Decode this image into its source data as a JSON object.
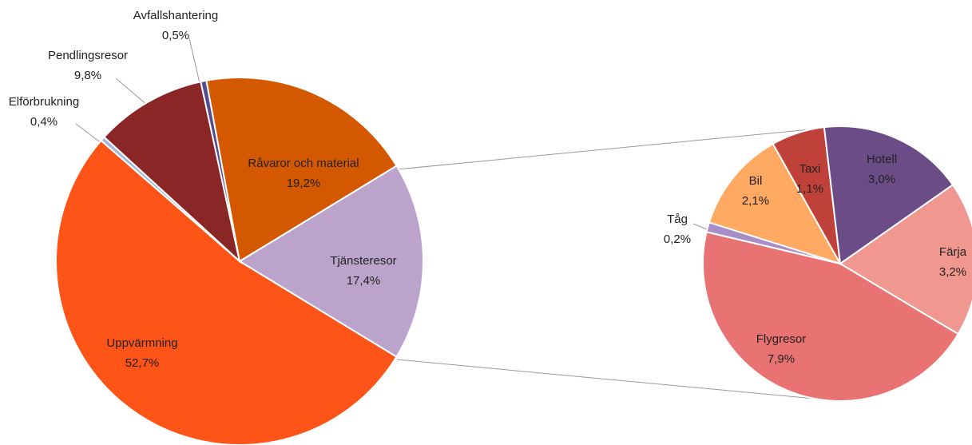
{
  "chart_data": [
    {
      "type": "pie",
      "categories": [
        "Tjänsteresor",
        "Uppvärmning",
        "Elförbrukning",
        "Pendlingsresor",
        "Avfallshantering",
        "Råvaror och material"
      ],
      "values": [
        17.4,
        52.7,
        0.4,
        9.8,
        0.5,
        19.2
      ],
      "value_labels": [
        "17,4%",
        "52,7%",
        "0,4%",
        "9,8%",
        "0,5%",
        "19,2%"
      ],
      "colors": [
        "#bba3cb",
        "#fe5418",
        "#9fb6d8",
        "#8b2626",
        "#584a8c",
        "#d45800"
      ]
    },
    {
      "type": "pie",
      "categories": [
        "Färja",
        "Flygresor",
        "Tåg",
        "Bil",
        "Taxi",
        "Hotell"
      ],
      "values": [
        3.2,
        7.9,
        0.2,
        2.1,
        1.1,
        3.0
      ],
      "value_labels": [
        "3,2%",
        "7,9%",
        "0,2%",
        "2,1%",
        "1,1%",
        "3,0%"
      ],
      "colors": [
        "#f0978f",
        "#e87372",
        "#a98dc6",
        "#ffa962",
        "#c0403a",
        "#6b4c87"
      ]
    }
  ]
}
